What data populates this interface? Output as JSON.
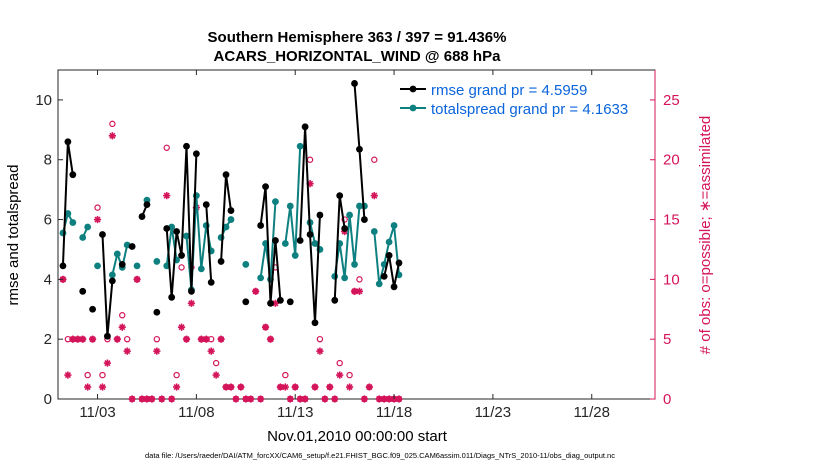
{
  "colors": {
    "rmse": "#000000",
    "spread": "#0f8080",
    "obs": "#d4145a",
    "legend_text": "#0a64dc"
  },
  "chart_data": {
    "type": "line",
    "title": "Southern Hemisphere 363 / 397 = 91.436%",
    "subtitle": "ACARS_HORIZONTAL_WIND @ 688 hPa",
    "xlabel": "Nov.01,2010 00:00:00 start",
    "ylabel": "rmse and totalspread",
    "y2label": "# of obs: o=possible; ∗=assimilated",
    "footnote": "data file: /Users/raeder/DAI/ATM_forcXX/CAM6_setup/f.e21.FHIST_BGC.f09_025.CAM6assim.011/Diags_NTrS_2010-11/obs_diag_output.nc",
    "xlim": [
      1.25,
      31.0
    ],
    "ylim": [
      0,
      11
    ],
    "y2lim": [
      0,
      27.5
    ],
    "xticks": [
      3,
      8,
      13,
      18,
      23,
      28
    ],
    "xtick_labels": [
      "11/03",
      "11/08",
      "11/13",
      "11/18",
      "11/23",
      "11/28"
    ],
    "yticks": [
      0,
      2,
      4,
      6,
      8,
      10
    ],
    "y2ticks": [
      0,
      5,
      10,
      15,
      20,
      25
    ],
    "series": [
      {
        "name": "rmse grand pr = 4.5959",
        "legend": "rmse grand pr = 4.5959",
        "values": [
          [
            1.25,
            4.45
          ],
          [
            1.5,
            8.6
          ],
          [
            1.75,
            7.5
          ],
          [
            2.0,
            null
          ],
          [
            2.25,
            3.6
          ],
          [
            2.5,
            null
          ],
          [
            2.75,
            3.0
          ],
          [
            3.0,
            null
          ],
          [
            3.25,
            5.5
          ],
          [
            3.5,
            2.1
          ],
          [
            3.75,
            3.95
          ],
          [
            4.0,
            null
          ],
          [
            4.25,
            4.5
          ],
          [
            4.5,
            null
          ],
          [
            4.75,
            5.1
          ],
          [
            5.0,
            null
          ],
          [
            5.25,
            6.1
          ],
          [
            5.5,
            6.5
          ],
          [
            5.75,
            null
          ],
          [
            6.0,
            2.9
          ],
          [
            6.25,
            null
          ],
          [
            6.5,
            5.7
          ],
          [
            6.75,
            3.4
          ],
          [
            7.0,
            5.6
          ],
          [
            7.25,
            4.8
          ],
          [
            7.5,
            8.45
          ],
          [
            7.75,
            3.6
          ],
          [
            8.0,
            8.2
          ],
          [
            8.25,
            null
          ],
          [
            8.5,
            6.5
          ],
          [
            8.75,
            3.9
          ],
          [
            9.0,
            null
          ],
          [
            9.25,
            4.6
          ],
          [
            9.5,
            7.5
          ],
          [
            9.75,
            6.3
          ],
          [
            10.0,
            null
          ],
          [
            10.25,
            null
          ],
          [
            10.5,
            3.25
          ],
          [
            10.75,
            null
          ],
          [
            11.0,
            null
          ],
          [
            11.25,
            5.8
          ],
          [
            11.5,
            7.1
          ],
          [
            11.75,
            3.2
          ],
          [
            12.0,
            5.3
          ],
          [
            12.25,
            3.3
          ],
          [
            12.5,
            null
          ],
          [
            12.75,
            3.25
          ],
          [
            13.0,
            null
          ],
          [
            13.25,
            5.3
          ],
          [
            13.5,
            9.1
          ],
          [
            13.75,
            5.5
          ],
          [
            14.0,
            2.55
          ],
          [
            14.25,
            6.15
          ],
          [
            14.5,
            null
          ],
          [
            14.75,
            null
          ],
          [
            15.0,
            3.3
          ],
          [
            15.25,
            6.8
          ],
          [
            15.5,
            5.7
          ],
          [
            15.75,
            null
          ],
          [
            16.0,
            10.55
          ],
          [
            16.25,
            8.35
          ],
          [
            16.5,
            6.0
          ],
          [
            16.75,
            null
          ],
          [
            17.0,
            null
          ],
          [
            17.25,
            null
          ],
          [
            17.5,
            4.1
          ],
          [
            17.75,
            4.8
          ],
          [
            18.0,
            3.75
          ],
          [
            18.25,
            4.55
          ]
        ]
      },
      {
        "name": "totalspread grand pr = 4.1633",
        "legend": "totalspread grand pr = 4.1633",
        "values": [
          [
            1.25,
            5.55
          ],
          [
            1.5,
            6.2
          ],
          [
            1.75,
            5.9
          ],
          [
            2.0,
            null
          ],
          [
            2.25,
            5.4
          ],
          [
            2.5,
            5.75
          ],
          [
            2.75,
            null
          ],
          [
            3.0,
            4.45
          ],
          [
            3.25,
            null
          ],
          [
            3.5,
            null
          ],
          [
            3.75,
            4.15
          ],
          [
            4.0,
            4.85
          ],
          [
            4.25,
            4.4
          ],
          [
            4.5,
            5.15
          ],
          [
            4.75,
            null
          ],
          [
            5.0,
            4.45
          ],
          [
            5.25,
            null
          ],
          [
            5.5,
            6.65
          ],
          [
            5.75,
            null
          ],
          [
            6.0,
            4.6
          ],
          [
            6.25,
            null
          ],
          [
            6.5,
            4.45
          ],
          [
            6.75,
            5.75
          ],
          [
            7.0,
            4.65
          ],
          [
            7.25,
            null
          ],
          [
            7.5,
            5.45
          ],
          [
            7.75,
            3.65
          ],
          [
            8.0,
            6.8
          ],
          [
            8.25,
            4.35
          ],
          [
            8.5,
            5.8
          ],
          [
            8.75,
            4.95
          ],
          [
            9.0,
            null
          ],
          [
            9.25,
            5.4
          ],
          [
            9.5,
            5.75
          ],
          [
            9.75,
            6.0
          ],
          [
            10.0,
            null
          ],
          [
            10.25,
            null
          ],
          [
            10.5,
            4.5
          ],
          [
            10.75,
            null
          ],
          [
            11.0,
            null
          ],
          [
            11.25,
            4.05
          ],
          [
            11.5,
            5.2
          ],
          [
            11.75,
            4.0
          ],
          [
            12.0,
            6.6
          ],
          [
            12.25,
            null
          ],
          [
            12.5,
            5.2
          ],
          [
            12.75,
            6.45
          ],
          [
            13.0,
            4.8
          ],
          [
            13.25,
            8.45
          ],
          [
            13.5,
            null
          ],
          [
            13.75,
            5.9
          ],
          [
            14.0,
            5.2
          ],
          [
            14.25,
            5.0
          ],
          [
            14.5,
            null
          ],
          [
            14.75,
            null
          ],
          [
            15.0,
            4.1
          ],
          [
            15.25,
            5.2
          ],
          [
            15.5,
            4.05
          ],
          [
            15.75,
            6.15
          ],
          [
            16.0,
            4.5
          ],
          [
            16.25,
            6.45
          ],
          [
            16.5,
            6.45
          ],
          [
            16.75,
            null
          ],
          [
            17.0,
            5.6
          ],
          [
            17.25,
            3.85
          ],
          [
            17.5,
            4.5
          ],
          [
            17.75,
            5.25
          ],
          [
            18.0,
            5.8
          ],
          [
            18.25,
            4.15
          ]
        ]
      }
    ],
    "obs_possible": [
      [
        1.25,
        10
      ],
      [
        1.5,
        5
      ],
      [
        1.75,
        5
      ],
      [
        2.0,
        5
      ],
      [
        2.25,
        5
      ],
      [
        2.5,
        2
      ],
      [
        2.75,
        5
      ],
      [
        3.0,
        16
      ],
      [
        3.25,
        2
      ],
      [
        3.5,
        5
      ],
      [
        3.75,
        23
      ],
      [
        4.0,
        5
      ],
      [
        4.25,
        7
      ],
      [
        4.5,
        5
      ],
      [
        4.75,
        0
      ],
      [
        5.0,
        10
      ],
      [
        5.25,
        0
      ],
      [
        5.5,
        0
      ],
      [
        5.75,
        0
      ],
      [
        6.0,
        5
      ],
      [
        6.25,
        0
      ],
      [
        6.5,
        21
      ],
      [
        6.75,
        0
      ],
      [
        7.0,
        2
      ],
      [
        7.25,
        11
      ],
      [
        7.5,
        5
      ],
      [
        7.75,
        11
      ],
      [
        8.0,
        17
      ],
      [
        8.25,
        5
      ],
      [
        8.5,
        5
      ],
      [
        8.75,
        5
      ],
      [
        9.0,
        3
      ],
      [
        9.25,
        5
      ],
      [
        9.5,
        1
      ],
      [
        9.75,
        1
      ],
      [
        10.0,
        0
      ],
      [
        10.25,
        1
      ],
      [
        10.5,
        0
      ],
      [
        10.75,
        0
      ],
      [
        11.0,
        9
      ],
      [
        11.25,
        0
      ],
      [
        11.5,
        6
      ],
      [
        11.75,
        5
      ],
      [
        12.0,
        11
      ],
      [
        12.25,
        1
      ],
      [
        12.5,
        2
      ],
      [
        12.75,
        0
      ],
      [
        13.0,
        1
      ],
      [
        13.25,
        0
      ],
      [
        13.5,
        0
      ],
      [
        13.75,
        20
      ],
      [
        14.0,
        1
      ],
      [
        14.25,
        5
      ],
      [
        14.5,
        0
      ],
      [
        14.75,
        1
      ],
      [
        15.0,
        0
      ],
      [
        15.25,
        3
      ],
      [
        15.5,
        15
      ],
      [
        15.75,
        2
      ],
      [
        16.0,
        9
      ],
      [
        16.25,
        10
      ],
      [
        16.5,
        0
      ],
      [
        16.75,
        1
      ],
      [
        17.0,
        20
      ],
      [
        17.25,
        0
      ],
      [
        17.5,
        0
      ],
      [
        17.75,
        0
      ],
      [
        18.0,
        0
      ],
      [
        18.25,
        0
      ]
    ],
    "obs_assimilated": [
      [
        1.25,
        10
      ],
      [
        1.5,
        2
      ],
      [
        1.75,
        5
      ],
      [
        2.0,
        5
      ],
      [
        2.25,
        5
      ],
      [
        2.5,
        1
      ],
      [
        2.75,
        5
      ],
      [
        3.0,
        15
      ],
      [
        3.25,
        1
      ],
      [
        3.5,
        3
      ],
      [
        3.75,
        22
      ],
      [
        4.0,
        5
      ],
      [
        4.25,
        6
      ],
      [
        4.5,
        4
      ],
      [
        4.75,
        0
      ],
      [
        5.0,
        10
      ],
      [
        5.25,
        0
      ],
      [
        5.5,
        0
      ],
      [
        5.75,
        0
      ],
      [
        6.0,
        4
      ],
      [
        6.25,
        0
      ],
      [
        6.5,
        17
      ],
      [
        6.75,
        0
      ],
      [
        7.0,
        1
      ],
      [
        7.25,
        6
      ],
      [
        7.5,
        5
      ],
      [
        7.75,
        8
      ],
      [
        8.0,
        16
      ],
      [
        8.25,
        5
      ],
      [
        8.5,
        5
      ],
      [
        8.75,
        4
      ],
      [
        9.0,
        2
      ],
      [
        9.25,
        5
      ],
      [
        9.5,
        1
      ],
      [
        9.75,
        1
      ],
      [
        10.0,
        0
      ],
      [
        10.25,
        1
      ],
      [
        10.5,
        0
      ],
      [
        10.75,
        0
      ],
      [
        11.0,
        9
      ],
      [
        11.25,
        0
      ],
      [
        11.5,
        6
      ],
      [
        11.75,
        5
      ],
      [
        12.0,
        8
      ],
      [
        12.25,
        1
      ],
      [
        12.5,
        1
      ],
      [
        12.75,
        0
      ],
      [
        13.0,
        1
      ],
      [
        13.25,
        0
      ],
      [
        13.5,
        0
      ],
      [
        13.75,
        18
      ],
      [
        14.0,
        1
      ],
      [
        14.25,
        4
      ],
      [
        14.5,
        0
      ],
      [
        14.75,
        1
      ],
      [
        15.0,
        0
      ],
      [
        15.25,
        2
      ],
      [
        15.5,
        14
      ],
      [
        15.75,
        1
      ],
      [
        16.0,
        9
      ],
      [
        16.25,
        9
      ],
      [
        16.5,
        0
      ],
      [
        16.75,
        1
      ],
      [
        17.0,
        17
      ],
      [
        17.25,
        0
      ],
      [
        17.5,
        0
      ],
      [
        17.75,
        0
      ],
      [
        18.0,
        0
      ],
      [
        18.25,
        0
      ]
    ]
  }
}
